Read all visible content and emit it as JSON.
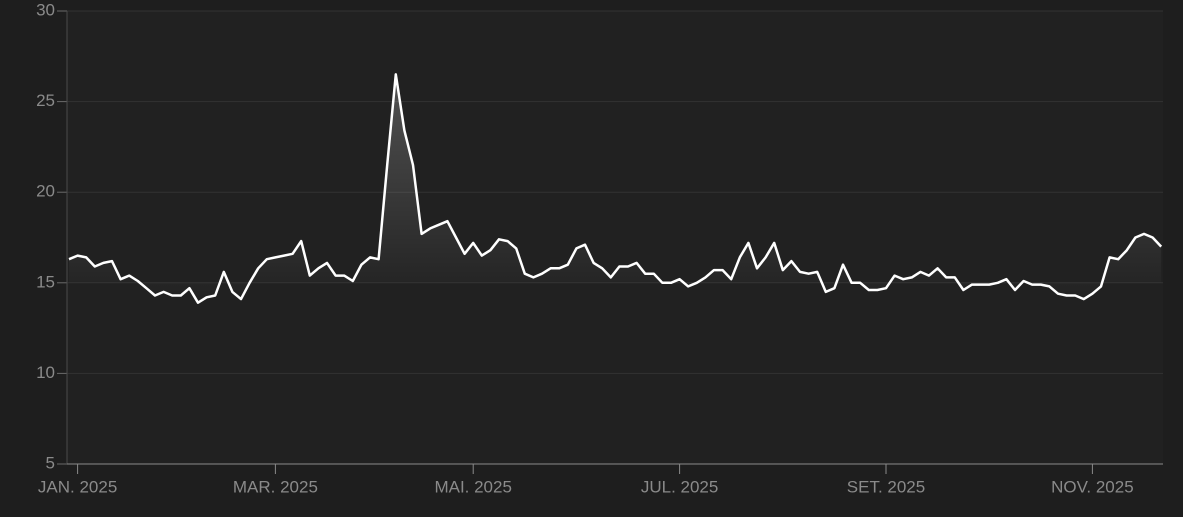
{
  "chart_data": {
    "type": "line",
    "categories": [
      null,
      "JAN. 2025",
      null,
      null,
      null,
      null,
      null,
      null,
      null,
      null,
      null,
      null,
      null,
      null,
      null,
      null,
      null,
      null,
      null,
      null,
      null,
      null,
      null,
      null,
      "MAR. 2025",
      null,
      null,
      null,
      null,
      null,
      null,
      null,
      null,
      null,
      null,
      null,
      null,
      null,
      null,
      null,
      null,
      null,
      null,
      null,
      null,
      null,
      null,
      "MAI. 2025",
      null,
      null,
      null,
      null,
      null,
      null,
      null,
      null,
      null,
      null,
      null,
      null,
      null,
      null,
      null,
      null,
      null,
      null,
      null,
      null,
      null,
      null,
      null,
      "JUL. 2025",
      null,
      null,
      null,
      null,
      null,
      null,
      null,
      null,
      null,
      null,
      null,
      null,
      null,
      null,
      null,
      null,
      null,
      null,
      null,
      null,
      null,
      null,
      null,
      "SET. 2025",
      null,
      null,
      null,
      null,
      null,
      null,
      null,
      null,
      null,
      null,
      null,
      null,
      null,
      null,
      null,
      null,
      null,
      null,
      null,
      null,
      null,
      null,
      null,
      "NOV. 2025",
      null,
      null,
      null,
      null,
      null,
      null,
      null,
      null
    ],
    "values": [
      16.3,
      16.5,
      16.4,
      15.9,
      16.1,
      16.2,
      15.2,
      15.4,
      15.1,
      14.7,
      14.3,
      14.5,
      14.3,
      14.3,
      14.7,
      13.9,
      14.2,
      14.3,
      15.6,
      14.5,
      14.1,
      15.0,
      15.8,
      16.3,
      16.4,
      16.5,
      16.6,
      17.3,
      15.4,
      15.8,
      16.1,
      15.4,
      15.4,
      15.1,
      16.0,
      16.4,
      16.3,
      21.5,
      26.5,
      23.4,
      21.5,
      17.7,
      18.0,
      18.2,
      18.4,
      17.5,
      16.6,
      17.2,
      16.5,
      16.8,
      17.4,
      17.3,
      16.9,
      15.5,
      15.3,
      15.5,
      15.8,
      15.8,
      16.0,
      16.9,
      17.1,
      16.1,
      15.8,
      15.3,
      15.9,
      15.9,
      16.1,
      15.5,
      15.5,
      15.0,
      15.0,
      15.2,
      14.8,
      15.0,
      15.3,
      15.7,
      15.7,
      15.2,
      16.4,
      17.2,
      15.8,
      16.4,
      17.2,
      15.7,
      16.2,
      15.6,
      15.5,
      15.6,
      14.5,
      14.7,
      16.0,
      15.0,
      15.0,
      14.6,
      14.6,
      14.7,
      15.4,
      15.2,
      15.3,
      15.6,
      15.4,
      15.8,
      15.3,
      15.3,
      14.6,
      14.9,
      14.9,
      14.9,
      15.0,
      15.2,
      14.6,
      15.1,
      14.9,
      14.9,
      14.8,
      14.4,
      14.3,
      14.3,
      14.1,
      14.4,
      14.8,
      16.4,
      16.3,
      16.8,
      17.5,
      17.7,
      17.5,
      17.0
    ],
    "color": "#ffffff",
    "ylim": [
      5,
      30
    ],
    "yticks": [
      5,
      10,
      15,
      20,
      25,
      30
    ],
    "grid": true
  }
}
